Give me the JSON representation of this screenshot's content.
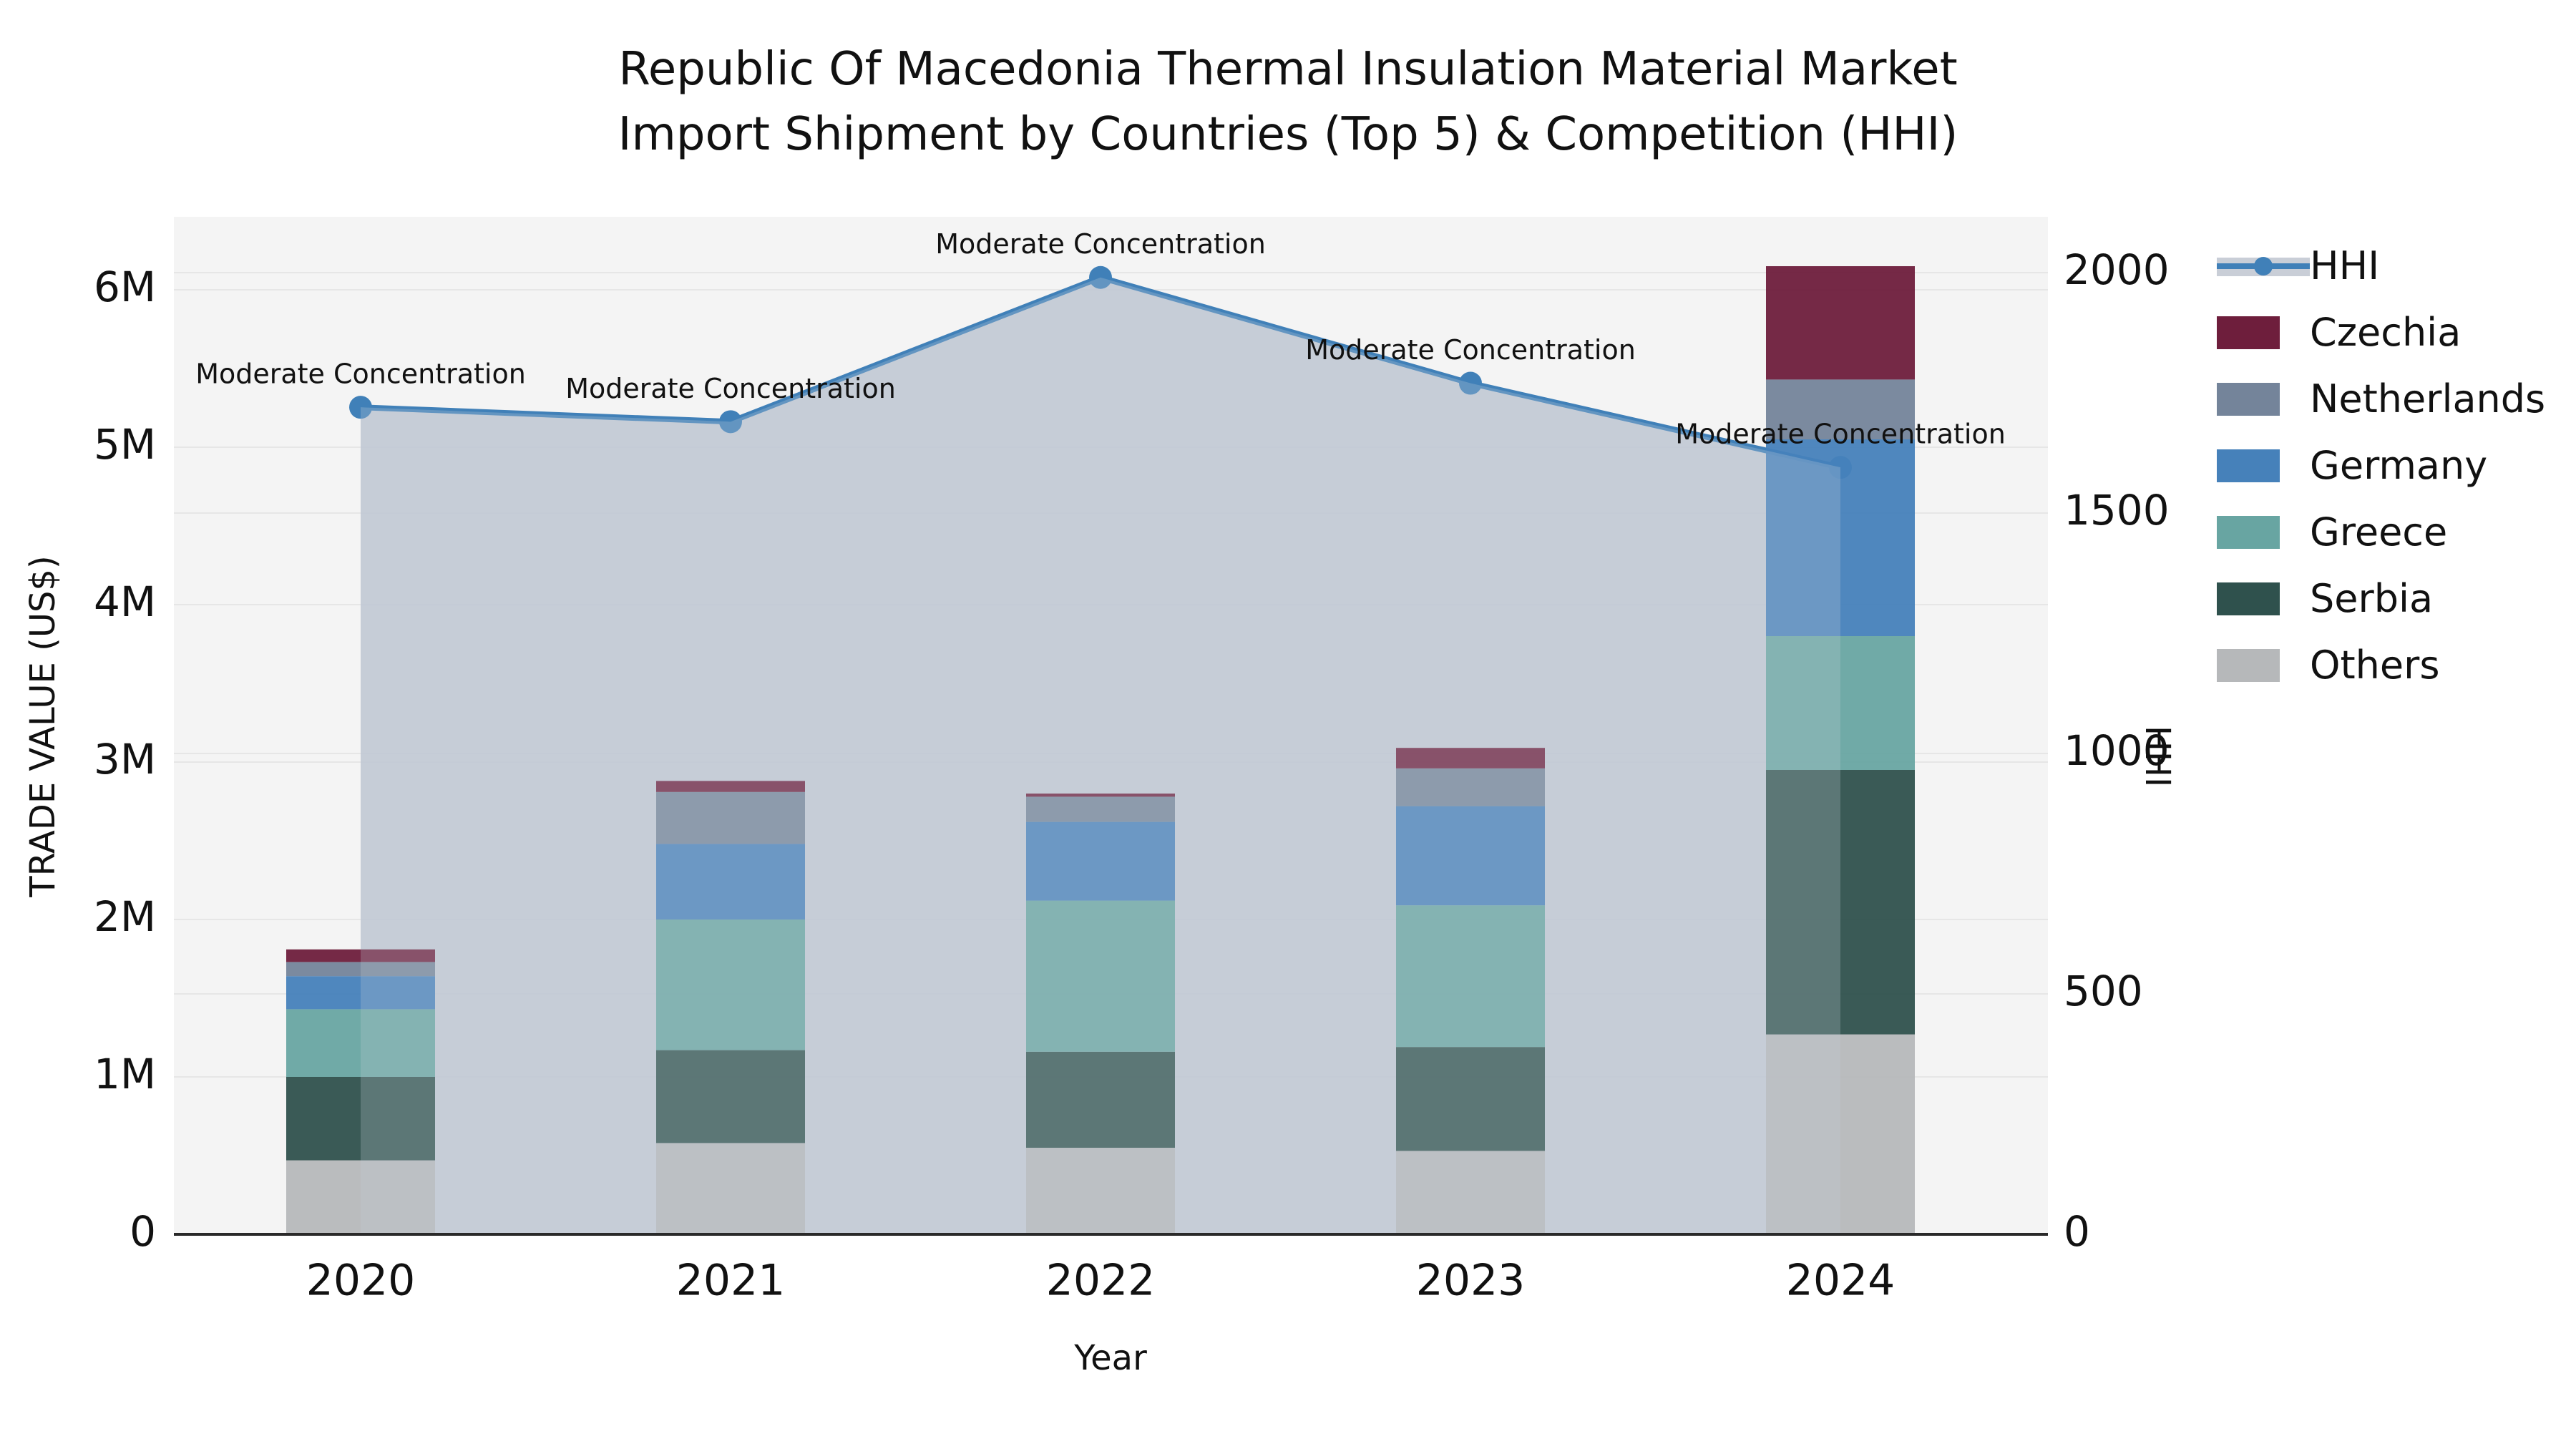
{
  "title": {
    "line1": "Republic Of Macedonia Thermal Insulation Material Market",
    "line2": "Import Shipment by Countries (Top 5) & Competition (HHI)"
  },
  "axes": {
    "x_label": "Year",
    "y_left_label": "TRADE VALUE (US$)",
    "y_right_label": "HHI"
  },
  "legend": {
    "entries": [
      {
        "label": "HHI",
        "type": "line",
        "color": "#4080b8",
        "band_color": "#c9ced7"
      },
      {
        "label": "Czechia",
        "type": "patch",
        "color": "#6e1e3c"
      },
      {
        "label": "Netherlands",
        "type": "patch",
        "color": "#74849a"
      },
      {
        "label": "Germany",
        "type": "patch",
        "color": "#4681ba"
      },
      {
        "label": "Greece",
        "type": "patch",
        "color": "#68a5a2"
      },
      {
        "label": "Serbia",
        "type": "patch",
        "color": "#2f514d"
      },
      {
        "label": "Others",
        "type": "patch",
        "color": "#b6b8ba"
      }
    ]
  },
  "chart_data": {
    "type": "combo: stacked bar (left axis) + line with area fill (right axis)",
    "categories": [
      "2020",
      "2021",
      "2022",
      "2023",
      "2024"
    ],
    "unit_left": "million US$",
    "series": [
      {
        "name": "Others",
        "color": "#b6b8ba",
        "values": [
          0.47,
          0.58,
          0.55,
          0.53,
          1.27
        ]
      },
      {
        "name": "Serbia",
        "color": "#2f514d",
        "values": [
          0.53,
          0.59,
          0.61,
          0.66,
          1.68
        ]
      },
      {
        "name": "Greece",
        "color": "#68a5a2",
        "values": [
          0.43,
          0.83,
          0.96,
          0.9,
          0.85
        ]
      },
      {
        "name": "Germany",
        "color": "#4681ba",
        "values": [
          0.21,
          0.48,
          0.5,
          0.63,
          1.25
        ]
      },
      {
        "name": "Netherlands",
        "color": "#74849a",
        "values": [
          0.09,
          0.33,
          0.16,
          0.24,
          0.38
        ]
      },
      {
        "name": "Czechia",
        "color": "#6e1e3c",
        "values": [
          0.08,
          0.07,
          0.02,
          0.13,
          0.72
        ]
      }
    ],
    "stack_order": "bottom to top: Others, Serbia, Greece, Germany, Netherlands, Czechia",
    "line_series": {
      "name": "HHI",
      "color": "#4080b8",
      "area_fill_color": "#bac2cf",
      "values": [
        1720,
        1690,
        1990,
        1770,
        1595
      ]
    },
    "annotation_text": "Moderate Concentration",
    "annotations_on_points": [
      true,
      true,
      true,
      true,
      true
    ],
    "title": "Republic Of Macedonia Thermal Insulation Material Market Import Shipment by Countries (Top 5) & Competition (HHI)",
    "xlabel": "Year",
    "ylabel_left": "TRADE VALUE (US$)",
    "ylabel_right": "HHI",
    "ylim_left_musd": [
      0,
      6.45
    ],
    "ylim_right_hhi": [
      0,
      2115
    ],
    "yticks_left_labels": [
      "0",
      "1M",
      "2M",
      "3M",
      "4M",
      "5M",
      "6M"
    ],
    "yticks_left_values": [
      0,
      1,
      2,
      3,
      4,
      5,
      6
    ],
    "yticks_right_labels": [
      "0",
      "500",
      "1000",
      "1500",
      "2000"
    ],
    "yticks_right_values": [
      0,
      500,
      1000,
      1500,
      2000
    ],
    "grid": true,
    "plot_background": "#f4f4f4",
    "gridline_color": "#e6e6e6",
    "legend_position": "right"
  }
}
